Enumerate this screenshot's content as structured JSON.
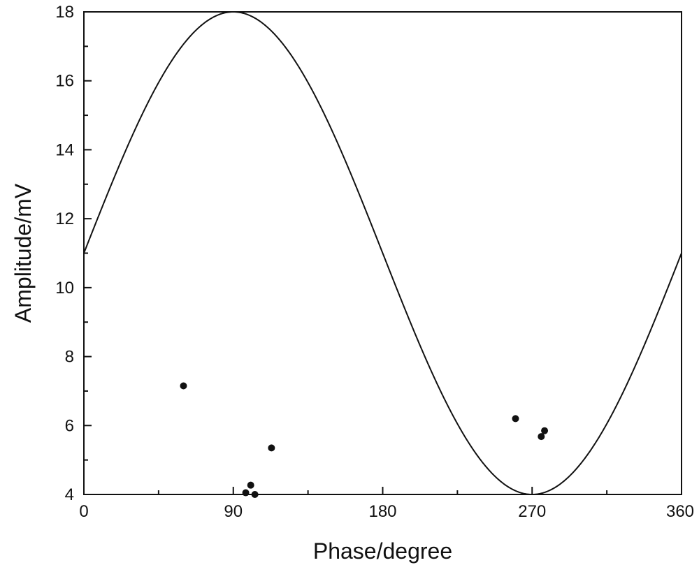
{
  "chart_data": {
    "type": "scatter",
    "title": "",
    "xlabel": "Phase/degree",
    "ylabel": "Amplitude/mV",
    "xlim": [
      0,
      360
    ],
    "ylim": [
      4,
      18
    ],
    "x_ticks": [
      0,
      90,
      180,
      270,
      360
    ],
    "y_ticks": [
      4,
      6,
      8,
      10,
      12,
      14,
      16,
      18
    ],
    "x_minor_step": 45,
    "y_minor_step": 1,
    "grid": false,
    "legend": "none",
    "series": [
      {
        "kind": "curve",
        "function": "sine",
        "offset": 11,
        "amplitude": 7,
        "color": "#111111"
      },
      {
        "kind": "points",
        "color": "#111111",
        "points": [
          {
            "x": 60,
            "y": 7.15
          },
          {
            "x": 97.5,
            "y": 4.05
          },
          {
            "x": 100.5,
            "y": 4.27
          },
          {
            "x": 103,
            "y": 4.0
          },
          {
            "x": 113,
            "y": 5.35
          },
          {
            "x": 260,
            "y": 6.2
          },
          {
            "x": 275.5,
            "y": 5.68
          },
          {
            "x": 277.5,
            "y": 5.85
          }
        ]
      }
    ]
  }
}
